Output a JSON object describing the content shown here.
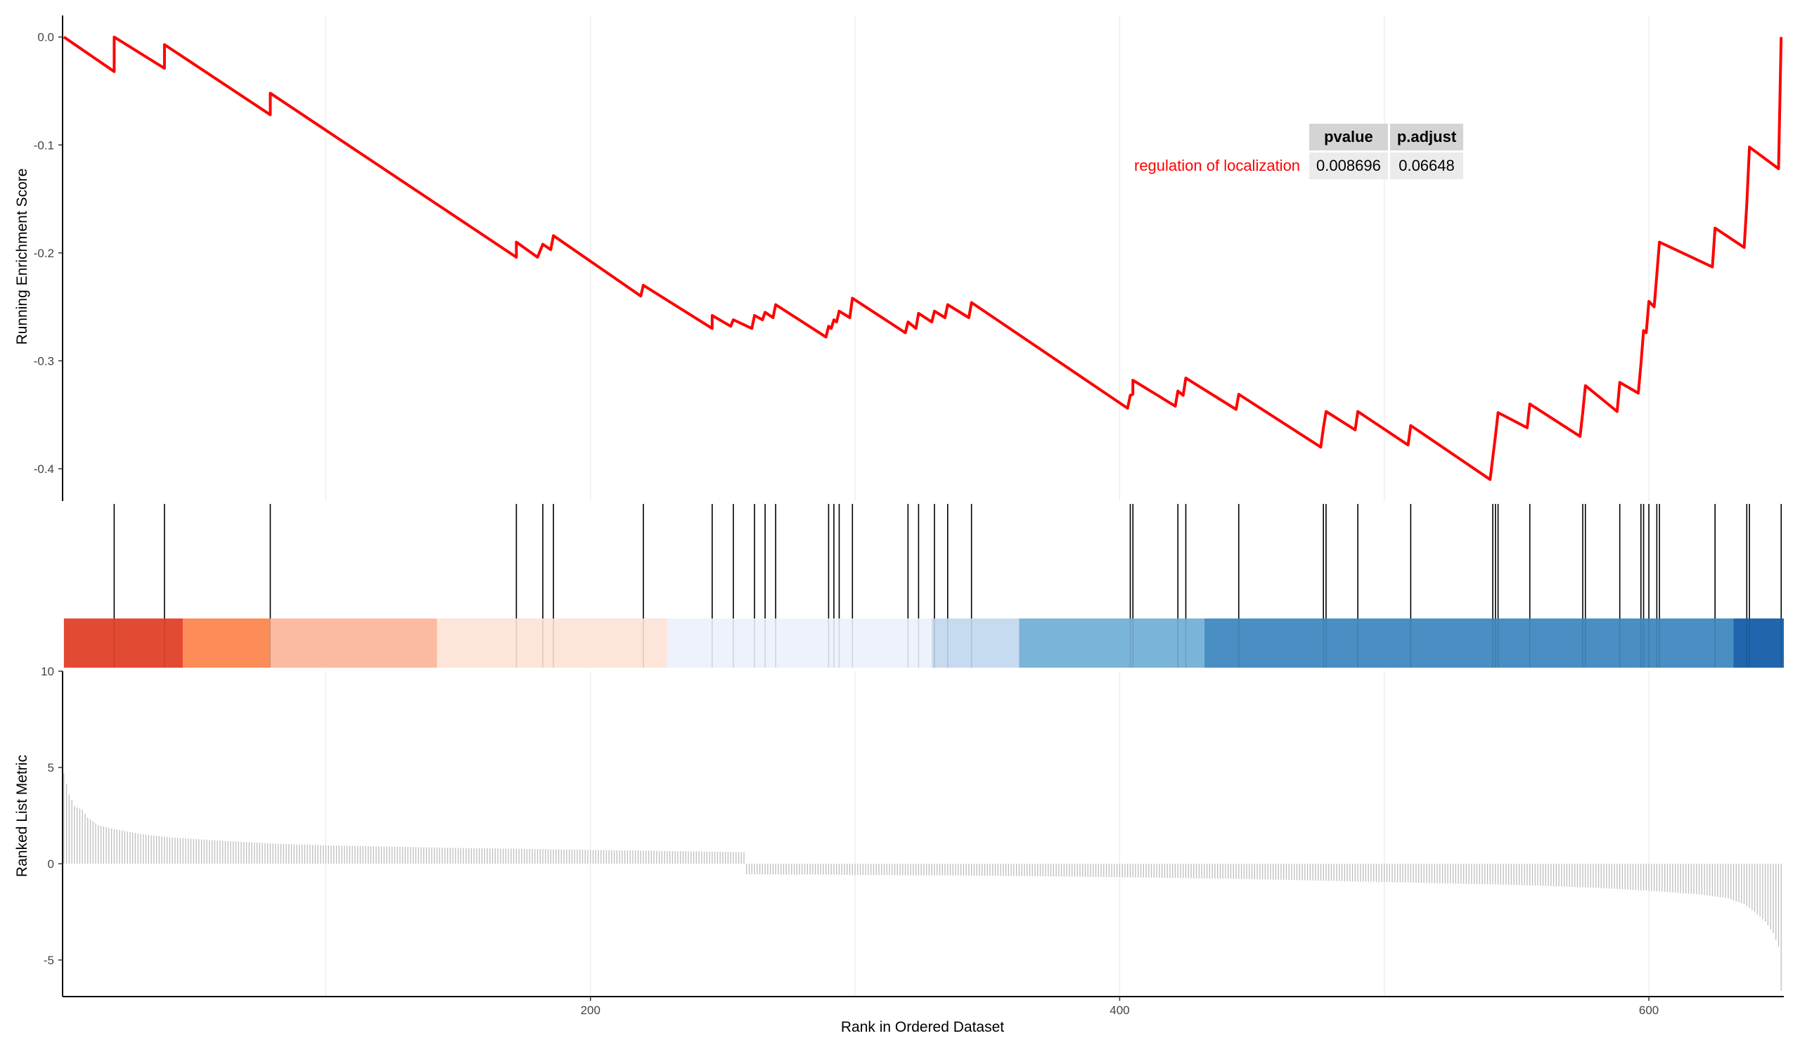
{
  "colors": {
    "curve": "#ff0000",
    "hit_line": "#000000",
    "metric_bar": "#bdbdbd",
    "grid": "#ebebeb",
    "axis": "#000000",
    "term": "#ff0000",
    "header_bg": "#d4d4d4",
    "value_bg": "#ebebeb",
    "rank_bands": [
      "#e34a33",
      "#fc8d59",
      "#fcbba1",
      "#fee5d9",
      "#eef2fc",
      "#c6dbef",
      "#7bb4d9",
      "#4a8fc4",
      "#2166ac"
    ]
  },
  "table": {
    "headers": [
      "pvalue",
      "p.adjust"
    ],
    "term": "regulation of localization",
    "pvalue": "0.008696",
    "padjust": "0.06648"
  },
  "chart_data": {
    "type": "line",
    "title": "",
    "n_genes": 650,
    "hits": [
      20,
      39,
      79,
      172,
      182,
      186,
      220,
      246,
      254,
      262,
      266,
      270,
      290,
      292,
      294,
      299,
      320,
      324,
      330,
      335,
      344,
      404,
      405,
      422,
      425,
      445,
      477,
      478,
      490,
      510,
      541,
      542,
      543,
      555,
      575,
      576,
      589,
      597,
      598,
      600,
      603,
      604,
      625,
      637,
      638,
      650
    ],
    "es_points": [
      [
        1,
        0.0
      ],
      [
        20,
        -0.032
      ],
      [
        20,
        0.0
      ],
      [
        39,
        -0.029
      ],
      [
        39,
        -0.007
      ],
      [
        79,
        -0.072
      ],
      [
        79,
        -0.052
      ],
      [
        172,
        -0.204
      ],
      [
        172,
        -0.19
      ],
      [
        180,
        -0.204
      ],
      [
        182,
        -0.192
      ],
      [
        185,
        -0.197
      ],
      [
        186,
        -0.184
      ],
      [
        219,
        -0.24
      ],
      [
        220,
        -0.23
      ],
      [
        246,
        -0.27
      ],
      [
        246,
        -0.258
      ],
      [
        253,
        -0.268
      ],
      [
        254,
        -0.262
      ],
      [
        261,
        -0.27
      ],
      [
        262,
        -0.258
      ],
      [
        265,
        -0.262
      ],
      [
        266,
        -0.255
      ],
      [
        269,
        -0.26
      ],
      [
        270,
        -0.248
      ],
      [
        289,
        -0.278
      ],
      [
        290,
        -0.268
      ],
      [
        291,
        -0.27
      ],
      [
        292,
        -0.262
      ],
      [
        293,
        -0.264
      ],
      [
        294,
        -0.254
      ],
      [
        298,
        -0.26
      ],
      [
        299,
        -0.242
      ],
      [
        319,
        -0.274
      ],
      [
        320,
        -0.264
      ],
      [
        323,
        -0.27
      ],
      [
        324,
        -0.256
      ],
      [
        329,
        -0.264
      ],
      [
        330,
        -0.254
      ],
      [
        334,
        -0.26
      ],
      [
        335,
        -0.248
      ],
      [
        343,
        -0.26
      ],
      [
        344,
        -0.246
      ],
      [
        403,
        -0.344
      ],
      [
        404,
        -0.332
      ],
      [
        405,
        -0.331
      ],
      [
        405,
        -0.318
      ],
      [
        421,
        -0.342
      ],
      [
        422,
        -0.328
      ],
      [
        424,
        -0.332
      ],
      [
        425,
        -0.316
      ],
      [
        444,
        -0.345
      ],
      [
        445,
        -0.331
      ],
      [
        476,
        -0.38
      ],
      [
        477,
        -0.362
      ],
      [
        477,
        -0.362
      ],
      [
        478,
        -0.347
      ],
      [
        489,
        -0.364
      ],
      [
        490,
        -0.347
      ],
      [
        509,
        -0.378
      ],
      [
        510,
        -0.36
      ],
      [
        540,
        -0.41
      ],
      [
        541,
        -0.39
      ],
      [
        541,
        -0.39
      ],
      [
        542,
        -0.37
      ],
      [
        542,
        -0.37
      ],
      [
        543,
        -0.348
      ],
      [
        554,
        -0.362
      ],
      [
        555,
        -0.34
      ],
      [
        574,
        -0.37
      ],
      [
        575,
        -0.348
      ],
      [
        575,
        -0.348
      ],
      [
        576,
        -0.323
      ],
      [
        588,
        -0.347
      ],
      [
        589,
        -0.32
      ],
      [
        596,
        -0.33
      ],
      [
        597,
        -0.303
      ],
      [
        597,
        -0.303
      ],
      [
        598,
        -0.272
      ],
      [
        599,
        -0.274
      ],
      [
        600,
        -0.245
      ],
      [
        602,
        -0.25
      ],
      [
        603,
        -0.22
      ],
      [
        603,
        -0.22
      ],
      [
        604,
        -0.19
      ],
      [
        624,
        -0.213
      ],
      [
        625,
        -0.177
      ],
      [
        636,
        -0.195
      ],
      [
        637,
        -0.155
      ],
      [
        637,
        -0.155
      ],
      [
        638,
        -0.102
      ],
      [
        649,
        -0.122
      ],
      [
        650,
        0.0
      ]
    ],
    "metric_samples": [
      [
        1,
        4.7
      ],
      [
        3,
        3.6
      ],
      [
        5,
        3.0
      ],
      [
        8,
        2.8
      ],
      [
        10,
        2.4
      ],
      [
        12,
        2.2
      ],
      [
        14,
        2.0
      ],
      [
        20,
        1.8
      ],
      [
        30,
        1.55
      ],
      [
        40,
        1.38
      ],
      [
        60,
        1.2
      ],
      [
        80,
        1.05
      ],
      [
        100,
        0.95
      ],
      [
        150,
        0.82
      ],
      [
        200,
        0.72
      ],
      [
        240,
        0.64
      ],
      [
        258,
        0.6
      ],
      [
        259,
        -0.55
      ],
      [
        300,
        -0.58
      ],
      [
        350,
        -0.62
      ],
      [
        400,
        -0.7
      ],
      [
        450,
        -0.8
      ],
      [
        500,
        -0.95
      ],
      [
        550,
        -1.1
      ],
      [
        580,
        -1.25
      ],
      [
        600,
        -1.4
      ],
      [
        620,
        -1.6
      ],
      [
        630,
        -1.8
      ],
      [
        636,
        -2.1
      ],
      [
        640,
        -2.5
      ],
      [
        644,
        -3.0
      ],
      [
        647,
        -3.6
      ],
      [
        649,
        -4.3
      ],
      [
        650,
        -6.6
      ]
    ],
    "rank_bands": [
      [
        1,
        46
      ],
      [
        46,
        79
      ],
      [
        79,
        142
      ],
      [
        142,
        229
      ],
      [
        229,
        329
      ],
      [
        329,
        362
      ],
      [
        362,
        432
      ],
      [
        432,
        632
      ],
      [
        632,
        651
      ]
    ],
    "x_ticks": [
      200,
      400,
      600
    ],
    "es_y_ticks": [
      0.0,
      -0.1,
      -0.2,
      -0.3,
      -0.4
    ],
    "es_y_tick_labels": [
      "0.0",
      "-0.1",
      "-0.2",
      "-0.3",
      "-0.4"
    ],
    "es_ylim": [
      -0.43,
      0.02
    ],
    "metric_y_ticks": [
      10,
      5,
      0,
      -5
    ],
    "metric_y_tick_labels": [
      "10",
      "5",
      "0",
      "-5"
    ],
    "metric_ylim": [
      -6.9,
      10
    ],
    "xlim": [
      0.5,
      651
    ],
    "xlabel": "Rank in Ordered Dataset",
    "ylabel_es": "Running Enrichment Score",
    "ylabel_metric": "Ranked List Metric",
    "grid": true
  }
}
